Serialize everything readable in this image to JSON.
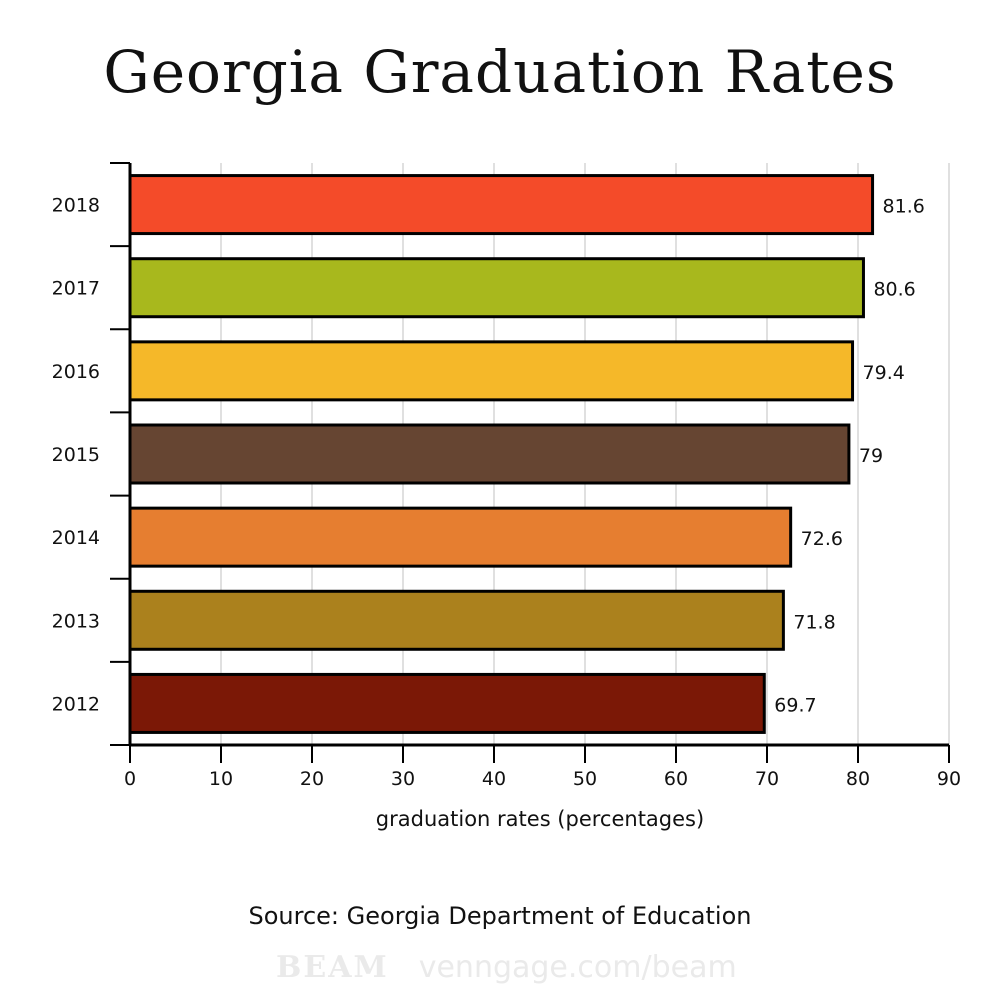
{
  "title": "Georgia Graduation Rates",
  "source": "Source: Georgia Department of Education",
  "watermark": {
    "logo": "BEAM",
    "url": "venngage.com/beam"
  },
  "chart_data": {
    "type": "bar",
    "orientation": "horizontal",
    "title": "Georgia Graduation Rates",
    "xlabel": "graduation rates (percentages)",
    "ylabel": "",
    "categories": [
      "2018",
      "2017",
      "2016",
      "2015",
      "2014",
      "2013",
      "2012"
    ],
    "values": [
      81.6,
      80.6,
      79.4,
      79,
      72.6,
      71.8,
      69.7
    ],
    "value_labels": [
      "81.6",
      "80.6",
      "79.4",
      "79",
      "72.6",
      "71.8",
      "69.7"
    ],
    "colors": [
      "#f44b29",
      "#a8b81d",
      "#f5b829",
      "#664532",
      "#e67e30",
      "#ab811d",
      "#7b1806"
    ],
    "xlim": [
      0,
      90
    ],
    "xticks": [
      "0",
      "10",
      "20",
      "30",
      "40",
      "50",
      "60",
      "70",
      "80",
      "90"
    ],
    "grid": true
  }
}
